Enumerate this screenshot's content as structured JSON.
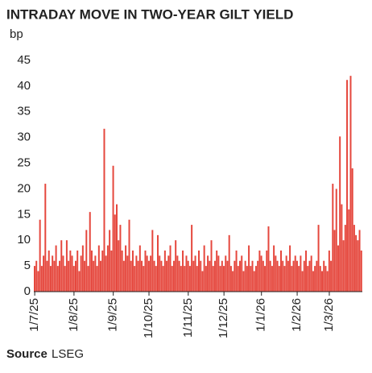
{
  "chart_data": {
    "type": "bar",
    "title": "INTRADAY MOVE IN TWO-YEAR GILT YIELD",
    "y_label": "bp",
    "source_label": "Source",
    "source": "LSEG",
    "color": "#e5473d",
    "ylim": [
      0,
      45
    ],
    "yticks": [
      0,
      5,
      10,
      15,
      20,
      25,
      30,
      35,
      40,
      45
    ],
    "grid": false,
    "categories": [
      "1/7/25",
      null,
      null,
      null,
      null,
      null,
      null,
      null,
      null,
      null,
      null,
      null,
      null,
      null,
      null,
      null,
      null,
      null,
      null,
      null,
      null,
      null,
      "1/8/25",
      null,
      null,
      null,
      null,
      null,
      null,
      null,
      null,
      null,
      null,
      null,
      null,
      null,
      null,
      null,
      null,
      null,
      null,
      null,
      null,
      null,
      "1/9/25",
      null,
      null,
      null,
      null,
      null,
      null,
      null,
      null,
      null,
      null,
      null,
      null,
      null,
      null,
      null,
      null,
      null,
      null,
      null,
      "1/10/25",
      null,
      null,
      null,
      null,
      null,
      null,
      null,
      null,
      null,
      null,
      null,
      null,
      null,
      null,
      null,
      null,
      null,
      null,
      null,
      null,
      null,
      "1/11/25",
      null,
      null,
      null,
      null,
      null,
      null,
      null,
      null,
      null,
      null,
      null,
      null,
      null,
      null,
      null,
      null,
      null,
      null,
      null,
      "1/12/25",
      null,
      null,
      null,
      null,
      null,
      null,
      null,
      null,
      null,
      null,
      null,
      null,
      null,
      null,
      null,
      null,
      null,
      null,
      null,
      null,
      "1/1/26",
      null,
      null,
      null,
      null,
      null,
      null,
      null,
      null,
      null,
      null,
      null,
      null,
      null,
      null,
      null,
      null,
      null,
      null,
      null,
      "1/2/26",
      null,
      null,
      null,
      null,
      null,
      null,
      null,
      null,
      null,
      null,
      null,
      null,
      null,
      null,
      null,
      null,
      null,
      "1/3/26",
      null,
      null,
      null,
      null,
      null,
      null,
      null,
      null,
      null,
      null,
      null,
      null,
      null,
      null,
      null,
      null,
      null,
      null
    ],
    "values": [
      5,
      6,
      4,
      14,
      5,
      7,
      21,
      6,
      8,
      5,
      7,
      6,
      9,
      5,
      6,
      10,
      7,
      5,
      10,
      6,
      8,
      7,
      5,
      6,
      8,
      4,
      7,
      9,
      6,
      12,
      5,
      15.5,
      8,
      6,
      7,
      5,
      9,
      6,
      8,
      31.7,
      7,
      9,
      12,
      8,
      24.5,
      15,
      17,
      10,
      13,
      8,
      6,
      9,
      7,
      14,
      6,
      8,
      5,
      7,
      6,
      9,
      6,
      5,
      8,
      7,
      6,
      7,
      12,
      6,
      5,
      11,
      7,
      6,
      5,
      8,
      6,
      7,
      9,
      5,
      6,
      10,
      7,
      6,
      5,
      8,
      5,
      7,
      6,
      5,
      13,
      6,
      7,
      5,
      8,
      6,
      4,
      9,
      5,
      7,
      6,
      10,
      5,
      6,
      8,
      7,
      5,
      6,
      5,
      7,
      6,
      11,
      5,
      4,
      6,
      8,
      5,
      6,
      7,
      4,
      6,
      5,
      9,
      5,
      6,
      4,
      5,
      6,
      8,
      7,
      6,
      5,
      8,
      12.7,
      6,
      5,
      9,
      7,
      6,
      5,
      8,
      6,
      5,
      7,
      6,
      9,
      5,
      6,
      7,
      6,
      5,
      7,
      4,
      6,
      8,
      5,
      6,
      7,
      4,
      5,
      6,
      13,
      5,
      4,
      6,
      5,
      4,
      8,
      6,
      21,
      12,
      20,
      9,
      30.2,
      17,
      10,
      13,
      41.2,
      16,
      42,
      24,
      13,
      11,
      10,
      12,
      8
    ]
  }
}
